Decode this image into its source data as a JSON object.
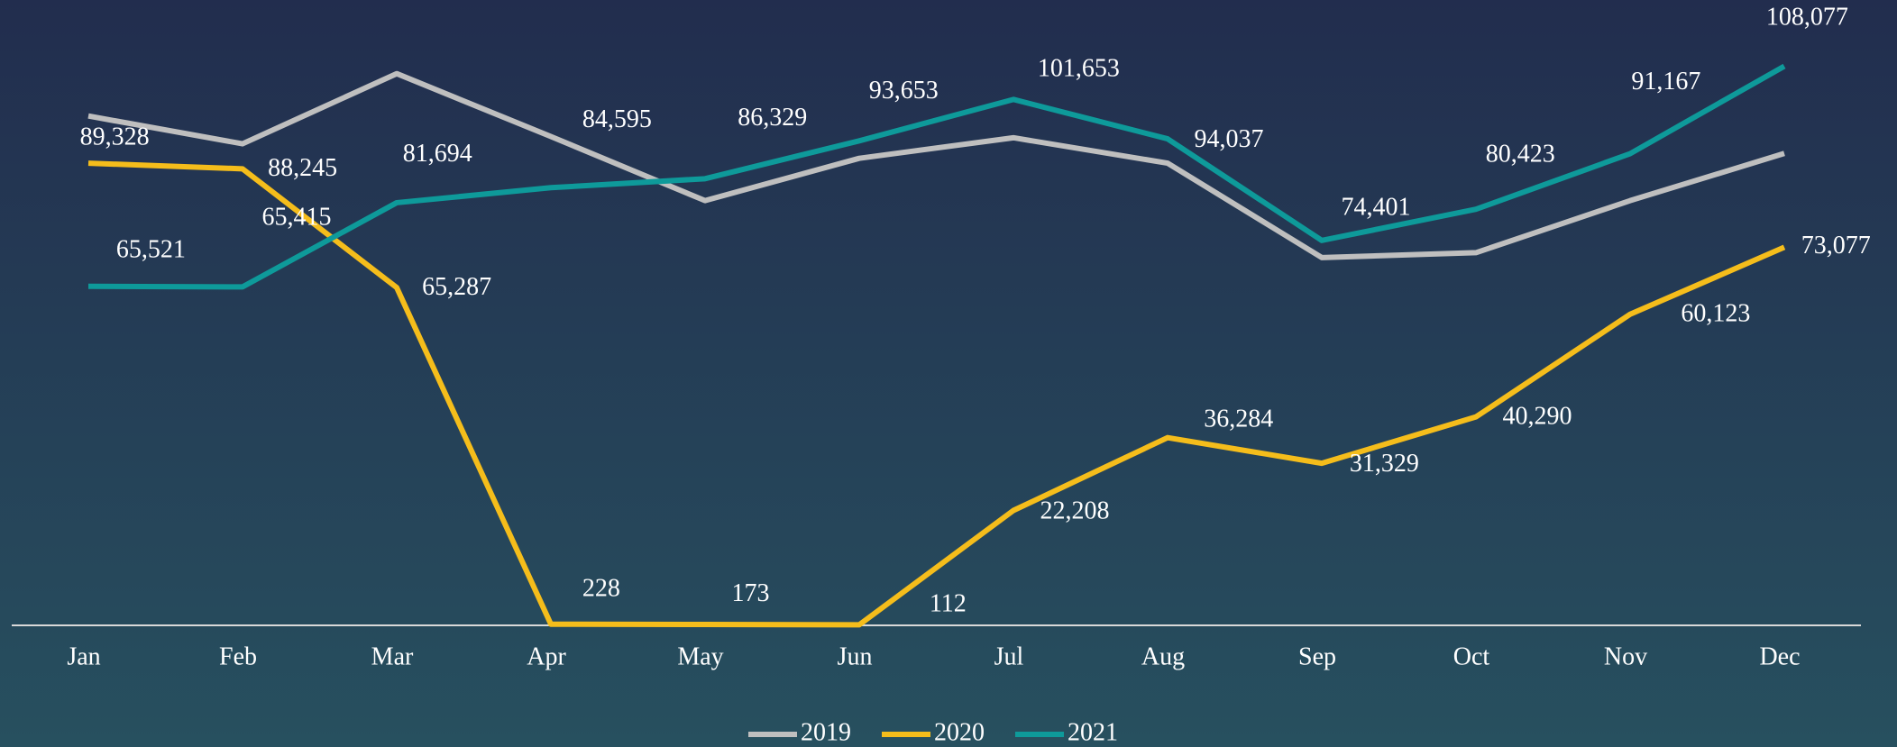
{
  "chart_data": {
    "type": "line",
    "categories": [
      "Jan",
      "Feb",
      "Mar",
      "Apr",
      "May",
      "Jun",
      "Jul",
      "Aug",
      "Sep",
      "Oct",
      "Nov",
      "Dec"
    ],
    "ylim": [
      0,
      120000
    ],
    "legend": "bottom",
    "series": [
      {
        "name": "2019",
        "color": "#bfbfbf",
        "values": [
          98450,
          93080,
          106640,
          94480,
          82090,
          90270,
          94250,
          89330,
          71090,
          72030,
          82090,
          91210
        ]
      },
      {
        "name": "2020",
        "color": "#f5bd1b",
        "values": [
          89328,
          88245,
          65287,
          228,
          173,
          112,
          22208,
          36284,
          31329,
          40290,
          60123,
          73077
        ],
        "value_labels": [
          "89,328",
          "88,245",
          "65,287",
          "228",
          "173",
          "112",
          "22,208",
          "36,284",
          "31,329",
          "40,290",
          "60,123",
          "73,077"
        ]
      },
      {
        "name": "2021",
        "color": "#0e9a9a",
        "values": [
          65521,
          65415,
          81694,
          84595,
          86329,
          93653,
          101653,
          94037,
          74401,
          80423,
          91167,
          108077
        ],
        "value_labels": [
          "65,521",
          "65,415",
          "81,694",
          "84,595",
          "86,329",
          "93,653",
          "101,653",
          "94,037",
          "74,401",
          "80,423",
          "91,167",
          "108,077"
        ]
      }
    ]
  }
}
